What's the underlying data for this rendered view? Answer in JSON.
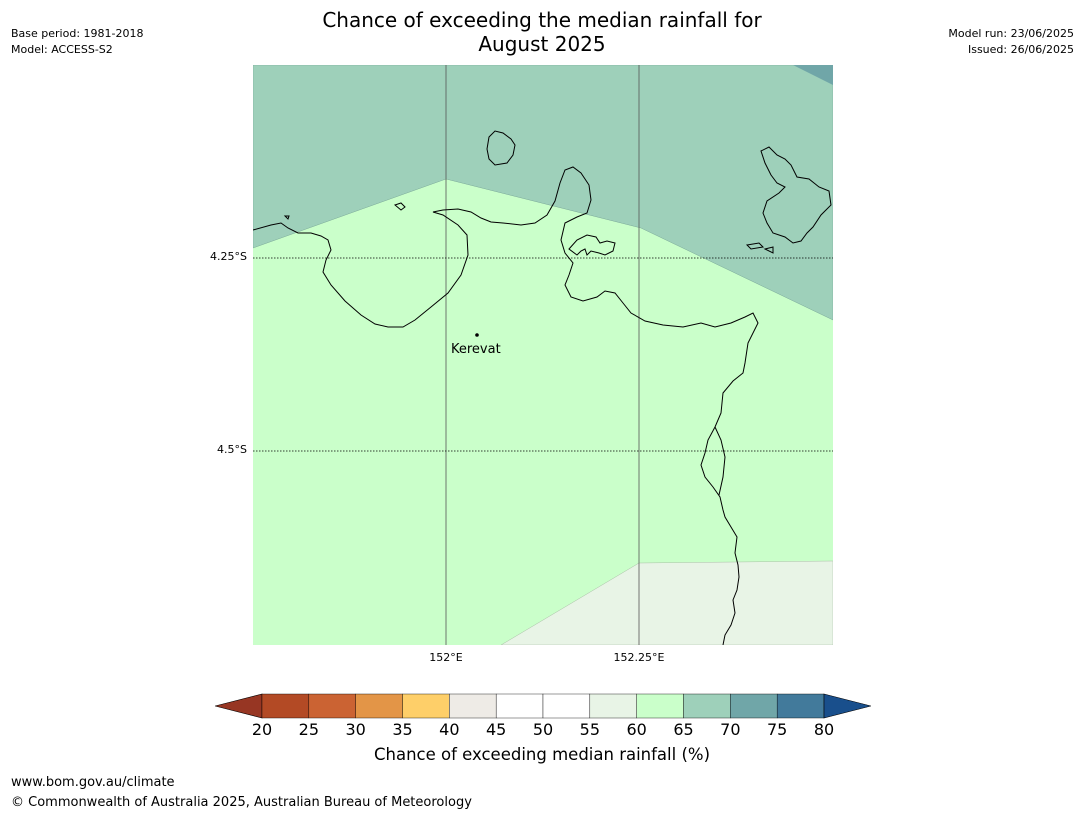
{
  "header": {
    "base_period": "Base period: 1981-2018",
    "model": "Model: ACCESS-S2",
    "title_line1": "Chance of exceeding the median rainfall for",
    "title_line2": "August 2025",
    "model_run": "Model run: 23/06/2025",
    "issued": "Issued: 26/06/2025"
  },
  "map": {
    "lat_labels": [
      "4.25°S",
      "4.5°S"
    ],
    "lon_labels": [
      "152°E",
      "152.25°E"
    ],
    "place": "Kerevat",
    "colors": {
      "band_55_60": "#e8f4e6",
      "band_60_65": "#caffca",
      "band_65_70": "#9ed0ba",
      "band_70_75": "#70a6a8",
      "coast": "#000000"
    }
  },
  "colorbar": {
    "ticks": [
      "20",
      "25",
      "30",
      "35",
      "40",
      "45",
      "50",
      "55",
      "60",
      "65",
      "70",
      "75",
      "80"
    ],
    "colors": [
      "#973623",
      "#b34a25",
      "#cb6333",
      "#e39547",
      "#fecf69",
      "#eeebe6",
      "#ffffff",
      "#ffffff",
      "#e8f4e6",
      "#caffca",
      "#9ed0ba",
      "#70a6a8",
      "#427a9b",
      "#194f8c"
    ],
    "label": "Chance of exceeding median rainfall (%)"
  },
  "footer": {
    "url": "www.bom.gov.au/climate",
    "copyright": "© Commonwealth of Australia 2025, Australian Bureau of Meteorology"
  }
}
